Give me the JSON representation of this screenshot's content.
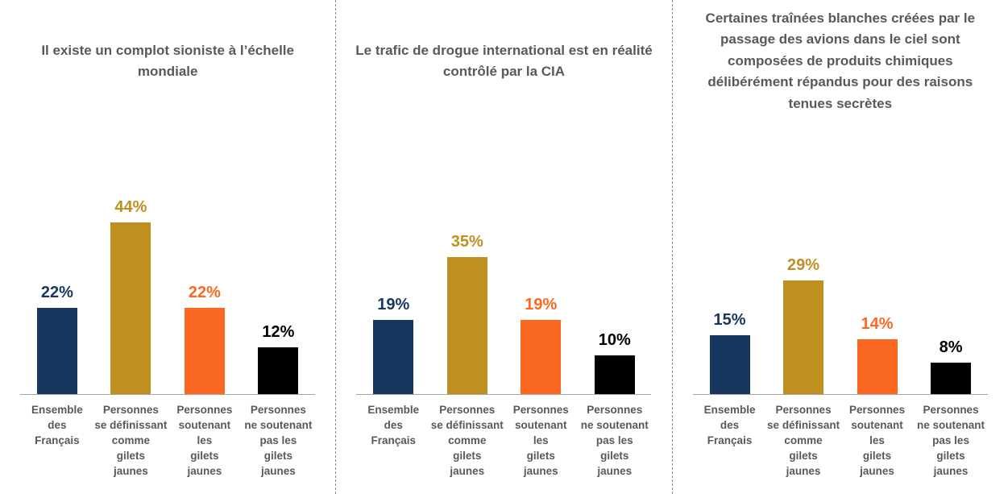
{
  "page": {
    "background": "#ffffff",
    "divider_color": "#8c8c8c",
    "divider_style": "dashed",
    "title_color": "#595959",
    "axis_label_color": "#595959",
    "axis_line_color": "#a6a6a6"
  },
  "chart_data": [
    {
      "type": "bar",
      "title": "Il existe un complot sioniste à l’échelle mondiale",
      "categories": [
        "Ensemble\ndes\nFrançais",
        "Personnes\nse définissant\ncomme\ngilets\njaunes",
        "Personnes\nsoutenant\nles\ngilets\njaunes",
        "Personnes\nne soutenant\npas les\ngilets\njaunes"
      ],
      "values": [
        22,
        44,
        22,
        12
      ],
      "value_labels": [
        "22%",
        "44%",
        "22%",
        "12%"
      ],
      "bar_colors": [
        "#17375E",
        "#BF8F1F",
        "#FB6821",
        "#000000"
      ],
      "ylim": [
        0,
        50
      ],
      "grid": false,
      "legend": "none",
      "value_label_position": "above-bar"
    },
    {
      "type": "bar",
      "title": "Le trafic de drogue international est en réalité contrôlé par la CIA",
      "categories": [
        "Ensemble\ndes\nFrançais",
        "Personnes\nse définissant\ncomme\ngilets\njaunes",
        "Personnes\nsoutenant\nles\ngilets\njaunes",
        "Personnes\nne soutenant\npas les\ngilets\njaunes"
      ],
      "values": [
        19,
        35,
        19,
        10
      ],
      "value_labels": [
        "19%",
        "35%",
        "19%",
        "10%"
      ],
      "bar_colors": [
        "#17375E",
        "#BF8F1F",
        "#FB6821",
        "#000000"
      ],
      "ylim": [
        0,
        50
      ],
      "grid": false,
      "legend": "none",
      "value_label_position": "above-bar"
    },
    {
      "type": "bar",
      "title": "Certaines traînées blanches créées par le passage des avions dans le ciel sont composées de produits chimiques délibérément répandus pour des raisons tenues secrètes",
      "categories": [
        "Ensemble\ndes\nFrançais",
        "Personnes\nse définissant\ncomme\ngilets\njaunes",
        "Personnes\nsoutenant\nles\ngilets\njaunes",
        "Personnes\nne soutenant\npas les\ngilets\njaunes"
      ],
      "values": [
        15,
        29,
        14,
        8
      ],
      "value_labels": [
        "15%",
        "29%",
        "14%",
        "8%"
      ],
      "bar_colors": [
        "#17375E",
        "#BF8F1F",
        "#FB6821",
        "#000000"
      ],
      "ylim": [
        0,
        50
      ],
      "grid": false,
      "legend": "none",
      "value_label_position": "above-bar"
    }
  ]
}
